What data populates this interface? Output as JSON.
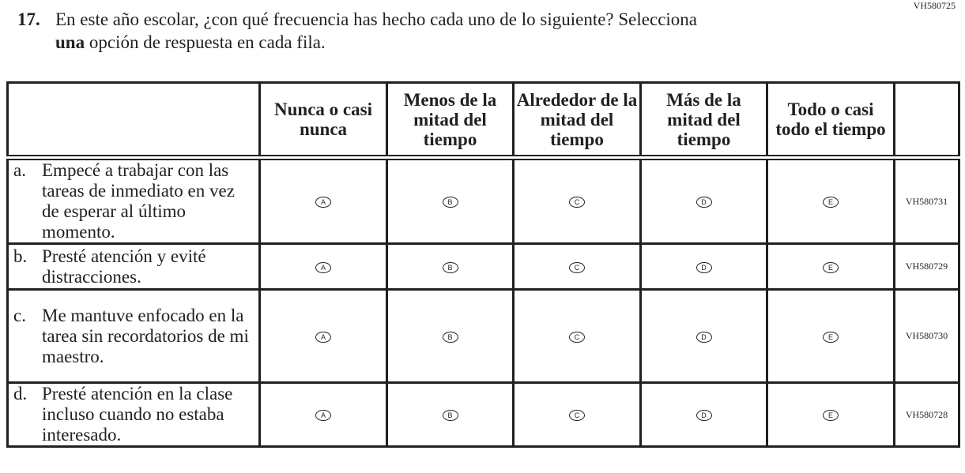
{
  "question_id": "VH580725",
  "question": {
    "number": "17.",
    "text_line1": "En este año escolar, ¿con qué frecuencia has hecho cada uno de lo siguiente? Selecciona",
    "bold_word": "una",
    "text_line2_rest": " opción de respuesta en cada fila."
  },
  "columns": [
    "Nunca o casi nunca",
    "Menos de la mitad del tiempo",
    "Alrededor de la mitad del tiempo",
    "Más de la mitad del tiempo",
    "Todo o casi todo el tiempo"
  ],
  "options": [
    "A",
    "B",
    "C",
    "D",
    "E"
  ],
  "rows": [
    {
      "letter": "a.",
      "text": "Empecé a trabajar con las tareas de inmediato en vez de esperar al último momento.",
      "code": "VH580731"
    },
    {
      "letter": "b.",
      "text": "Presté atención y evité distracciones.",
      "code": "VH580729"
    },
    {
      "letter": "c.",
      "text": "Me mantuve enfocado en la tarea sin recordatorios de mi maestro.",
      "code": "VH580730"
    },
    {
      "letter": "d.",
      "text": "Presté atención en la clase incluso cuando no estaba interesado.",
      "code": "VH580728"
    }
  ]
}
